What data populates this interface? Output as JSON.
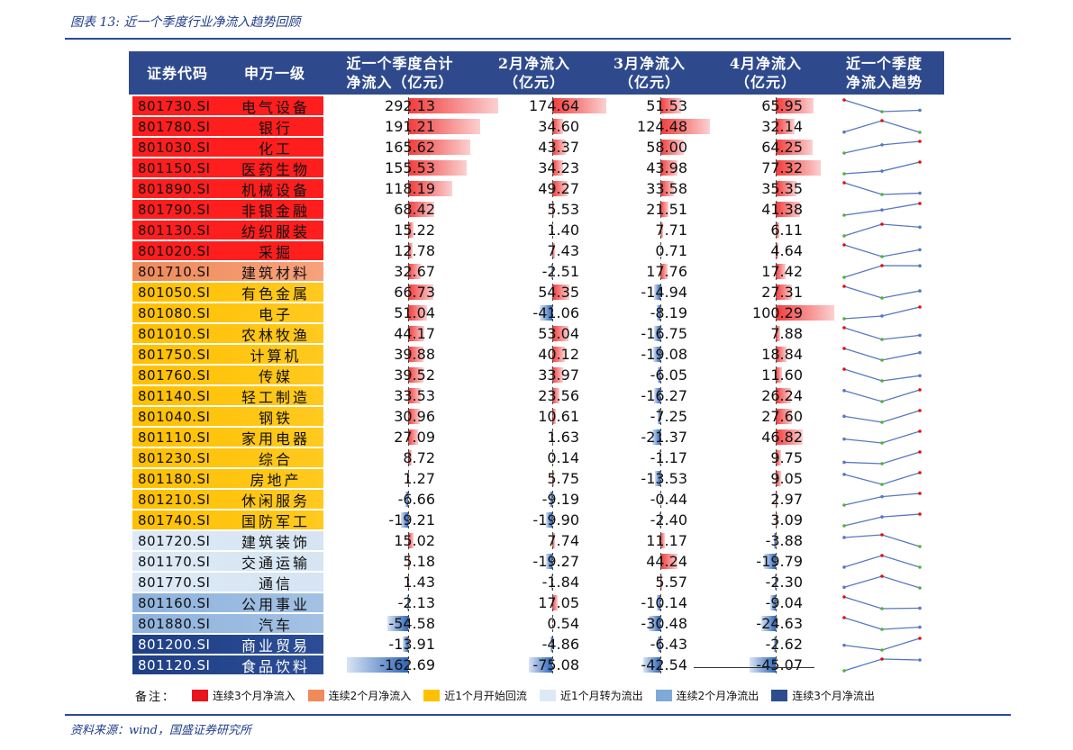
{
  "figure_title": "图表 13:  近一个季度行业净流入趋势回顾",
  "source": "资料来源：wind，国盛证券研究所",
  "headers": {
    "code": "证券代码",
    "name": "申万一级",
    "total_l1": "近一个季度合计",
    "total_l2": "净流入（亿元）",
    "m2_l1": "2月净流入",
    "m2_l2": "（亿元）",
    "m3_l1": "3月净流入",
    "m3_l2": "（亿元）",
    "m4_l1": "4月净流入",
    "m4_l2": "（亿元）",
    "trend_l1": "近一个季度",
    "trend_l2": "净流入趋势"
  },
  "colors": {
    "header_bg": "#2f4a8c",
    "pos_bar": "#f23c3c",
    "neg_bar": "#2f66b8",
    "trend_line": "#5878c0",
    "trend_max": "#e01010",
    "trend_min": "#52b040",
    "grad_3up": "#ff1e1e",
    "grad_2up": "#f7a27c",
    "grad_1up": "#ffc91f",
    "grad_1down": "#d6e4f3",
    "grad_2down": "#a3c1e3",
    "grad_3down": "#2b4d95"
  },
  "legend": {
    "label": "备注：",
    "items": [
      {
        "text": "连续3个月净流入",
        "color": "#e8141e"
      },
      {
        "text": "连续2个月净流入",
        "color": "#f08a5a"
      },
      {
        "text": "近1个月开始回流",
        "color": "#ffc000"
      },
      {
        "text": "近1个月转为流出",
        "color": "#ddeaf6"
      },
      {
        "text": "连续2个月净流出",
        "color": "#7fa9d8"
      },
      {
        "text": "连续3个月净流出",
        "color": "#2d4d8f"
      }
    ]
  },
  "rows": [
    {
      "code": "801730.SI",
      "name": "电气设备",
      "cat": "3up",
      "total": "292.13",
      "m2": "174.64",
      "m3": "51.53",
      "m4": "65.95",
      "t": 292.13,
      "a": 174.64,
      "b": 51.53,
      "c": 65.95
    },
    {
      "code": "801780.SI",
      "name": "银行",
      "cat": "3up",
      "total": "191.21",
      "m2": "34.60",
      "m3": "124.48",
      "m4": "32.14",
      "t": 191.21,
      "a": 34.6,
      "b": 124.48,
      "c": 32.14
    },
    {
      "code": "801030.SI",
      "name": "化工",
      "cat": "3up",
      "total": "165.62",
      "m2": "43.37",
      "m3": "58.00",
      "m4": "64.25",
      "t": 165.62,
      "a": 43.37,
      "b": 58.0,
      "c": 64.25
    },
    {
      "code": "801150.SI",
      "name": "医药生物",
      "cat": "3up",
      "total": "155.53",
      "m2": "34.23",
      "m3": "43.98",
      "m4": "77.32",
      "t": 155.53,
      "a": 34.23,
      "b": 43.98,
      "c": 77.32
    },
    {
      "code": "801890.SI",
      "name": "机械设备",
      "cat": "3up",
      "total": "118.19",
      "m2": "49.27",
      "m3": "33.58",
      "m4": "35.35",
      "t": 118.19,
      "a": 49.27,
      "b": 33.58,
      "c": 35.35
    },
    {
      "code": "801790.SI",
      "name": "非银金融",
      "cat": "3up",
      "total": "68.42",
      "m2": "5.53",
      "m3": "21.51",
      "m4": "41.38",
      "t": 68.42,
      "a": 5.53,
      "b": 21.51,
      "c": 41.38
    },
    {
      "code": "801130.SI",
      "name": "纺织服装",
      "cat": "3up",
      "total": "15.22",
      "m2": "1.40",
      "m3": "7.71",
      "m4": "6.11",
      "t": 15.22,
      "a": 1.4,
      "b": 7.71,
      "c": 6.11
    },
    {
      "code": "801020.SI",
      "name": "采掘",
      "cat": "3up",
      "total": "12.78",
      "m2": "7.43",
      "m3": "0.71",
      "m4": "4.64",
      "t": 12.78,
      "a": 7.43,
      "b": 0.71,
      "c": 4.64
    },
    {
      "code": "801710.SI",
      "name": "建筑材料",
      "cat": "2up",
      "total": "32.67",
      "m2": "-2.51",
      "m3": "17.76",
      "m4": "17.42",
      "t": 32.67,
      "a": -2.51,
      "b": 17.76,
      "c": 17.42
    },
    {
      "code": "801050.SI",
      "name": "有色金属",
      "cat": "1up",
      "total": "66.73",
      "m2": "54.35",
      "m3": "-14.94",
      "m4": "27.31",
      "t": 66.73,
      "a": 54.35,
      "b": -14.94,
      "c": 27.31
    },
    {
      "code": "801080.SI",
      "name": "电子",
      "cat": "1up",
      "total": "51.04",
      "m2": "-41.06",
      "m3": "-8.19",
      "m4": "100.29",
      "t": 51.04,
      "a": -41.06,
      "b": -8.19,
      "c": 100.29
    },
    {
      "code": "801010.SI",
      "name": "农林牧渔",
      "cat": "1up",
      "total": "44.17",
      "m2": "53.04",
      "m3": "-16.75",
      "m4": "7.88",
      "t": 44.17,
      "a": 53.04,
      "b": -16.75,
      "c": 7.88
    },
    {
      "code": "801750.SI",
      "name": "计算机",
      "cat": "1up",
      "total": "39.88",
      "m2": "40.12",
      "m3": "-19.08",
      "m4": "18.84",
      "t": 39.88,
      "a": 40.12,
      "b": -19.08,
      "c": 18.84
    },
    {
      "code": "801760.SI",
      "name": "传媒",
      "cat": "1up",
      "total": "39.52",
      "m2": "33.97",
      "m3": "-6.05",
      "m4": "11.60",
      "t": 39.52,
      "a": 33.97,
      "b": -6.05,
      "c": 11.6
    },
    {
      "code": "801140.SI",
      "name": "轻工制造",
      "cat": "1up",
      "total": "33.53",
      "m2": "23.56",
      "m3": "-16.27",
      "m4": "26.24",
      "t": 33.53,
      "a": 23.56,
      "b": -16.27,
      "c": 26.24
    },
    {
      "code": "801040.SI",
      "name": "钢铁",
      "cat": "1up",
      "total": "30.96",
      "m2": "10.61",
      "m3": "-7.25",
      "m4": "27.60",
      "t": 30.96,
      "a": 10.61,
      "b": -7.25,
      "c": 27.6
    },
    {
      "code": "801110.SI",
      "name": "家用电器",
      "cat": "1up",
      "total": "27.09",
      "m2": "1.63",
      "m3": "-21.37",
      "m4": "46.82",
      "t": 27.09,
      "a": 1.63,
      "b": -21.37,
      "c": 46.82
    },
    {
      "code": "801230.SI",
      "name": "综合",
      "cat": "1up",
      "total": "8.72",
      "m2": "0.14",
      "m3": "-1.17",
      "m4": "9.75",
      "t": 8.72,
      "a": 0.14,
      "b": -1.17,
      "c": 9.75
    },
    {
      "code": "801180.SI",
      "name": "房地产",
      "cat": "1up",
      "total": "1.27",
      "m2": "5.75",
      "m3": "-13.53",
      "m4": "9.05",
      "t": 1.27,
      "a": 5.75,
      "b": -13.53,
      "c": 9.05
    },
    {
      "code": "801210.SI",
      "name": "休闲服务",
      "cat": "1up",
      "total": "-6.66",
      "m2": "-9.19",
      "m3": "-0.44",
      "m4": "2.97",
      "t": -6.66,
      "a": -9.19,
      "b": -0.44,
      "c": 2.97
    },
    {
      "code": "801740.SI",
      "name": "国防军工",
      "cat": "1up",
      "total": "-19.21",
      "m2": "-19.90",
      "m3": "-2.40",
      "m4": "3.09",
      "t": -19.21,
      "a": -19.9,
      "b": -2.4,
      "c": 3.09
    },
    {
      "code": "801720.SI",
      "name": "建筑装饰",
      "cat": "1down",
      "total": "15.02",
      "m2": "7.74",
      "m3": "11.17",
      "m4": "-3.88",
      "t": 15.02,
      "a": 7.74,
      "b": 11.17,
      "c": -3.88
    },
    {
      "code": "801170.SI",
      "name": "交通运输",
      "cat": "1down",
      "total": "5.18",
      "m2": "-19.27",
      "m3": "44.24",
      "m4": "-19.79",
      "t": 5.18,
      "a": -19.27,
      "b": 44.24,
      "c": -19.79
    },
    {
      "code": "801770.SI",
      "name": "通信",
      "cat": "1down",
      "total": "1.43",
      "m2": "-1.84",
      "m3": "5.57",
      "m4": "-2.30",
      "t": 1.43,
      "a": -1.84,
      "b": 5.57,
      "c": -2.3
    },
    {
      "code": "801160.SI",
      "name": "公用事业",
      "cat": "2down",
      "total": "-2.13",
      "m2": "17.05",
      "m3": "-10.14",
      "m4": "-9.04",
      "t": -2.13,
      "a": 17.05,
      "b": -10.14,
      "c": -9.04
    },
    {
      "code": "801880.SI",
      "name": "汽车",
      "cat": "2down",
      "total": "-54.58",
      "m2": "0.54",
      "m3": "-30.48",
      "m4": "-24.63",
      "t": -54.58,
      "a": 0.54,
      "b": -30.48,
      "c": -24.63
    },
    {
      "code": "801200.SI",
      "name": "商业贸易",
      "cat": "3down",
      "total": "-13.91",
      "m2": "-4.86",
      "m3": "-6.43",
      "m4": "-2.62",
      "t": -13.91,
      "a": -4.86,
      "b": -6.43,
      "c": -2.62
    },
    {
      "code": "801120.SI",
      "name": "食品饮料",
      "cat": "3down",
      "total": "-162.69",
      "m2": "-75.08",
      "m3": "-42.54",
      "m4": "-45.07",
      "t": -162.69,
      "a": -75.08,
      "b": -42.54,
      "c": -45.07
    }
  ]
}
